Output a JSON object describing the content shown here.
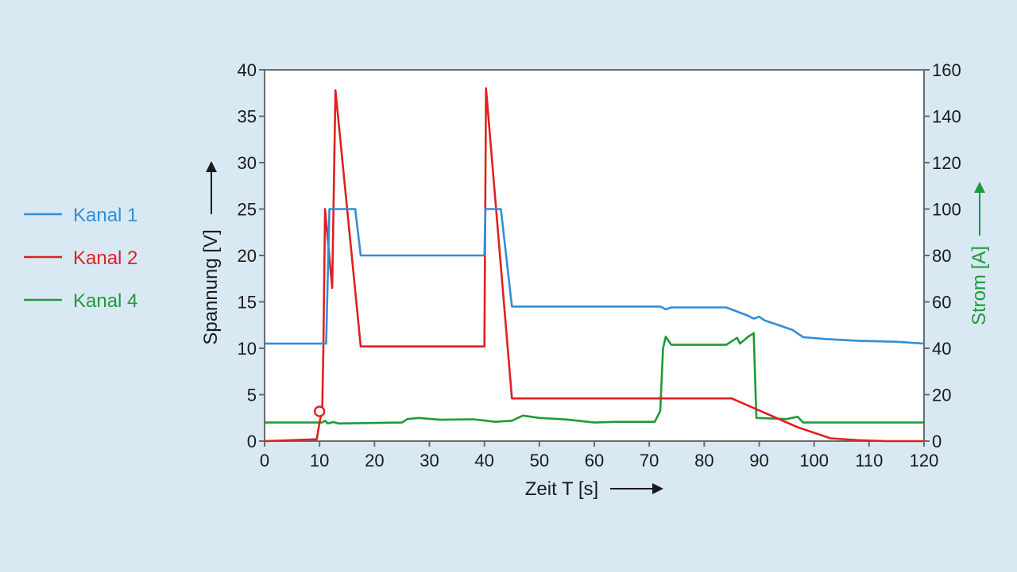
{
  "chart_data": {
    "type": "line",
    "xlabel": "Zeit T [s]",
    "ylabel_left": "Spannung [V]",
    "ylabel_right": "Strom [A]",
    "xlim": [
      0,
      120
    ],
    "ylim_left": [
      0,
      40
    ],
    "ylim_right": [
      0,
      160
    ],
    "x_ticks": [
      0,
      10,
      20,
      30,
      40,
      50,
      60,
      70,
      80,
      90,
      100,
      110,
      120
    ],
    "y_ticks_left": [
      0,
      5,
      10,
      15,
      20,
      25,
      30,
      35,
      40
    ],
    "y_ticks_right": [
      0,
      20,
      40,
      60,
      80,
      100,
      120,
      140,
      160
    ],
    "grid": false,
    "legend_position": "left",
    "series": [
      {
        "name": "Kanal 1",
        "color": "#2f8fd8",
        "axis": "left",
        "points": [
          [
            0,
            10.5
          ],
          [
            11.2,
            10.5
          ],
          [
            11.8,
            25
          ],
          [
            16.5,
            25
          ],
          [
            17.5,
            20
          ],
          [
            40,
            20
          ],
          [
            40.2,
            25
          ],
          [
            43,
            25
          ],
          [
            45,
            14.5
          ],
          [
            72,
            14.5
          ],
          [
            73,
            14.2
          ],
          [
            74,
            14.4
          ],
          [
            84,
            14.4
          ],
          [
            88,
            13.5
          ],
          [
            89,
            13.2
          ],
          [
            90,
            13.4
          ],
          [
            91,
            13
          ],
          [
            96,
            12
          ],
          [
            98,
            11.2
          ],
          [
            102,
            11
          ],
          [
            108,
            10.8
          ],
          [
            115,
            10.7
          ],
          [
            120,
            10.5
          ]
        ]
      },
      {
        "name": "Kanal 2",
        "color": "#e02020",
        "axis": "left",
        "points": [
          [
            0,
            0
          ],
          [
            9.5,
            0.2
          ],
          [
            10,
            2
          ],
          [
            10.5,
            3.5
          ],
          [
            10.7,
            10
          ],
          [
            11,
            25
          ],
          [
            12.3,
            16.5
          ],
          [
            12.9,
            37.8
          ],
          [
            17.5,
            10.2
          ],
          [
            40,
            10.2
          ],
          [
            40.3,
            38
          ],
          [
            45,
            4.6
          ],
          [
            85,
            4.6
          ],
          [
            97,
            1.5
          ],
          [
            103,
            0.3
          ],
          [
            108,
            0.1
          ],
          [
            113,
            0
          ],
          [
            120,
            0
          ]
        ]
      },
      {
        "name": "Kanal 4",
        "color": "#1f9a3a",
        "axis": "right",
        "points": [
          [
            0,
            8
          ],
          [
            10.5,
            8
          ],
          [
            11,
            8.8
          ],
          [
            11.5,
            7.6
          ],
          [
            12.5,
            8.2
          ],
          [
            13.5,
            7.6
          ],
          [
            25,
            8
          ],
          [
            26,
            9.5
          ],
          [
            28,
            10
          ],
          [
            32,
            9.2
          ],
          [
            38,
            9.4
          ],
          [
            42,
            8.3
          ],
          [
            45,
            8.8
          ],
          [
            47,
            11
          ],
          [
            50,
            10
          ],
          [
            55,
            9.3
          ],
          [
            60,
            8
          ],
          [
            64,
            8.3
          ],
          [
            71,
            8.3
          ],
          [
            72,
            13
          ],
          [
            72.5,
            40
          ],
          [
            73,
            45
          ],
          [
            74,
            41.5
          ],
          [
            84,
            41.5
          ],
          [
            85,
            43
          ],
          [
            86,
            44.5
          ],
          [
            86.5,
            42
          ],
          [
            88,
            45
          ],
          [
            89,
            46.5
          ],
          [
            89.5,
            10
          ],
          [
            95,
            9.5
          ],
          [
            97,
            10.5
          ],
          [
            98,
            8
          ],
          [
            112,
            8
          ],
          [
            120,
            8
          ]
        ]
      }
    ],
    "annotations": [
      {
        "type": "marker",
        "shape": "open-circle",
        "x": 10,
        "y": 3.2,
        "axis": "left",
        "color": "#e02020"
      }
    ]
  }
}
